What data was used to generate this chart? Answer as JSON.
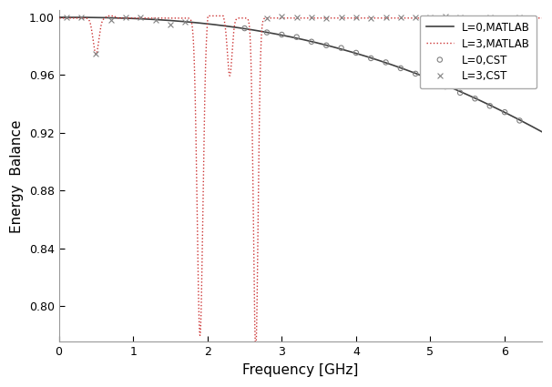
{
  "title": "",
  "xlabel": "Frequency [GHz]",
  "ylabel": "Energy  Balance",
  "xlim": [
    0,
    6.5
  ],
  "ylim": [
    0.775,
    1.005
  ],
  "yticks": [
    0.8,
    0.84,
    0.88,
    0.92,
    0.96,
    1.0
  ],
  "xticks": [
    0,
    1,
    2,
    3,
    4,
    5,
    6
  ],
  "line_L0_color": "#404040",
  "line_L3_color": "#cc3333",
  "scatter_L0_color": "#808080",
  "scatter_L3_color": "#808080",
  "legend_labels": [
    "L=0,MATLAB",
    "L=3,MATLAB",
    "L=0,CST",
    "L=3,CST"
  ],
  "background_color": "#ffffff"
}
